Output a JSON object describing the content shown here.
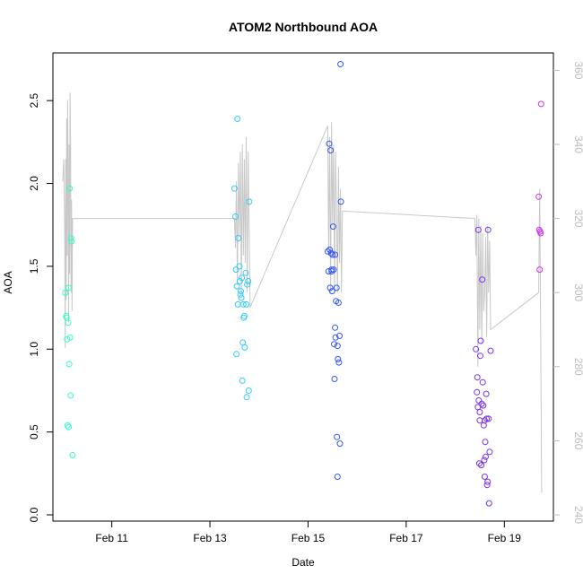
{
  "chart_data": {
    "type": "scatter",
    "title": "ATOM2 Northbound AOA",
    "xlabel": "Date",
    "ylabel": "AOA",
    "x_ticks": [
      "Feb 11",
      "Feb 13",
      "Feb 15",
      "Feb 17",
      "Feb 19"
    ],
    "x_tick_values": [
      11,
      13,
      15,
      17,
      19
    ],
    "xlim": [
      9.8,
      20.0
    ],
    "y_ticks": [
      "0.0",
      "0.5",
      "1.0",
      "1.5",
      "2.0",
      "2.5"
    ],
    "y_tick_values": [
      0,
      0.5,
      1.0,
      1.5,
      2.0,
      2.5
    ],
    "ylim": [
      0,
      2.75
    ],
    "y2_ticks": [
      "240",
      "260",
      "280",
      "300",
      "320",
      "340",
      "360"
    ],
    "y2_tick_values": [
      240,
      260,
      280,
      300,
      320,
      340,
      360
    ],
    "y2lim": [
      240,
      363
    ],
    "line_color": "#c8c8c8",
    "grid": false,
    "series": [
      {
        "color": "#33ffcc",
        "points": [
          [
            10.05,
            1.34
          ],
          [
            10.07,
            1.2
          ],
          [
            10.08,
            1.19
          ],
          [
            10.09,
            1.06
          ],
          [
            10.1,
            0.54
          ],
          [
            10.11,
            1.16
          ],
          [
            10.12,
            1.37
          ],
          [
            10.12,
            0.53
          ],
          [
            10.13,
            0.91
          ],
          [
            10.14,
            1.97
          ],
          [
            10.15,
            1.07
          ],
          [
            10.16,
            0.72
          ],
          [
            10.17,
            1.67
          ],
          [
            10.18,
            1.65
          ],
          [
            10.2,
            0.36
          ]
        ]
      },
      {
        "color": "#33ccff",
        "points": [
          [
            13.5,
            1.97
          ],
          [
            13.52,
            1.8
          ],
          [
            13.53,
            1.48
          ],
          [
            13.54,
            0.97
          ],
          [
            13.55,
            1.38
          ],
          [
            13.56,
            2.39
          ],
          [
            13.57,
            1.27
          ],
          [
            13.58,
            1.67
          ],
          [
            13.6,
            1.5
          ],
          [
            13.61,
            1.41
          ],
          [
            13.62,
            1.33
          ],
          [
            13.63,
            1.35
          ],
          [
            13.64,
            1.31
          ],
          [
            13.65,
            1.43
          ],
          [
            13.66,
            0.81
          ],
          [
            13.67,
            1.04
          ],
          [
            13.68,
            1.27
          ],
          [
            13.69,
            1.19
          ],
          [
            13.7,
            1.2
          ],
          [
            13.71,
            1.01
          ],
          [
            13.73,
            1.46
          ],
          [
            13.74,
            1.27
          ],
          [
            13.75,
            0.71
          ],
          [
            13.76,
            1.39
          ],
          [
            13.78,
            1.41
          ],
          [
            13.79,
            0.75
          ],
          [
            13.8,
            1.89
          ]
        ]
      },
      {
        "color": "#3355ff",
        "points": [
          [
            15.4,
            1.59
          ],
          [
            15.42,
            1.47
          ],
          [
            15.43,
            2.24
          ],
          [
            15.44,
            1.6
          ],
          [
            15.45,
            1.37
          ],
          [
            15.46,
            2.2
          ],
          [
            15.47,
            1.58
          ],
          [
            15.48,
            1.48
          ],
          [
            15.49,
            1.35
          ],
          [
            15.5,
            1.57
          ],
          [
            15.51,
            1.74
          ],
          [
            15.52,
            1.48
          ],
          [
            15.53,
            1.03
          ],
          [
            15.54,
            0.82
          ],
          [
            15.55,
            1.13
          ],
          [
            15.56,
            1.07
          ],
          [
            15.57,
            1.29
          ],
          [
            15.58,
            1.37
          ],
          [
            15.59,
            0.47
          ],
          [
            15.6,
            1.02
          ],
          [
            15.61,
            0.94
          ],
          [
            15.62,
            1.28
          ],
          [
            15.63,
            0.92
          ],
          [
            15.64,
            1.08
          ],
          [
            15.65,
            0.43
          ],
          [
            15.66,
            2.72
          ],
          [
            15.67,
            1.89
          ],
          [
            15.6,
            0.23
          ],
          [
            15.55,
            1.57
          ],
          [
            15.48,
            1.47
          ]
        ]
      },
      {
        "color": "#7733ee",
        "points": [
          [
            18.42,
            1.0
          ],
          [
            18.44,
            0.74
          ],
          [
            18.45,
            0.83
          ],
          [
            18.46,
            0.65
          ],
          [
            18.47,
            1.72
          ],
          [
            18.48,
            0.69
          ],
          [
            18.49,
            0.31
          ],
          [
            18.5,
            0.57
          ],
          [
            18.51,
            0.96
          ],
          [
            18.52,
            1.05
          ],
          [
            18.53,
            0.3
          ],
          [
            18.54,
            0.67
          ],
          [
            18.55,
            1.42
          ],
          [
            18.56,
            0.8
          ],
          [
            18.57,
            0.66
          ],
          [
            18.58,
            0.54
          ],
          [
            18.59,
            0.33
          ],
          [
            18.6,
            0.57
          ],
          [
            18.61,
            0.44
          ],
          [
            18.62,
            0.35
          ],
          [
            18.63,
            0.73
          ],
          [
            18.64,
            0.58
          ],
          [
            18.65,
            0.18
          ],
          [
            18.66,
            0.2
          ],
          [
            18.67,
            1.72
          ],
          [
            18.68,
            0.58
          ],
          [
            18.69,
            0.07
          ],
          [
            18.7,
            0.38
          ],
          [
            18.72,
            0.99
          ],
          [
            18.6,
            0.23
          ],
          [
            18.5,
            0.62
          ]
        ]
      },
      {
        "color": "#cc33ee",
        "points": [
          [
            19.7,
            1.92
          ],
          [
            19.71,
            1.72
          ],
          [
            19.72,
            1.48
          ],
          [
            19.73,
            1.71
          ],
          [
            19.74,
            1.7
          ],
          [
            19.75,
            2.48
          ]
        ]
      }
    ],
    "line_series": {
      "x": [
        10.0,
        10.02,
        10.04,
        10.05,
        10.06,
        10.07,
        10.08,
        10.09,
        10.1,
        10.11,
        10.12,
        10.13,
        10.14,
        10.15,
        10.16,
        10.17,
        10.18,
        10.19,
        10.2,
        13.5,
        13.52,
        13.54,
        13.56,
        13.58,
        13.6,
        13.62,
        13.64,
        13.66,
        13.68,
        13.7,
        13.72,
        13.74,
        13.76,
        13.78,
        13.8,
        13.82,
        15.4,
        15.42,
        15.44,
        15.46,
        15.48,
        15.5,
        15.52,
        15.54,
        15.56,
        15.58,
        15.6,
        15.62,
        15.64,
        15.66,
        15.68,
        15.7,
        18.4,
        18.42,
        18.44,
        18.46,
        18.48,
        18.5,
        18.52,
        18.54,
        18.56,
        18.58,
        18.6,
        18.62,
        18.64,
        18.66,
        18.68,
        18.7,
        18.72,
        19.7,
        19.72,
        19.74,
        19.76
      ],
      "y": [
        330,
        336,
        318,
        285,
        336,
        298,
        347,
        310,
        352,
        330,
        292,
        340,
        305,
        354,
        340,
        300,
        325,
        295,
        320,
        320,
        312,
        330,
        302,
        335,
        315,
        338,
        300,
        340,
        310,
        336,
        308,
        342,
        300,
        338,
        316,
        296,
        345,
        310,
        342,
        300,
        346,
        318,
        340,
        300,
        338,
        322,
        300,
        334,
        308,
        328,
        300,
        322,
        320,
        310,
        321,
        280,
        320,
        290,
        318,
        286,
        316,
        295,
        300,
        315,
        288,
        318,
        300,
        314,
        290,
        300,
        328,
        290,
        246
      ]
    }
  }
}
